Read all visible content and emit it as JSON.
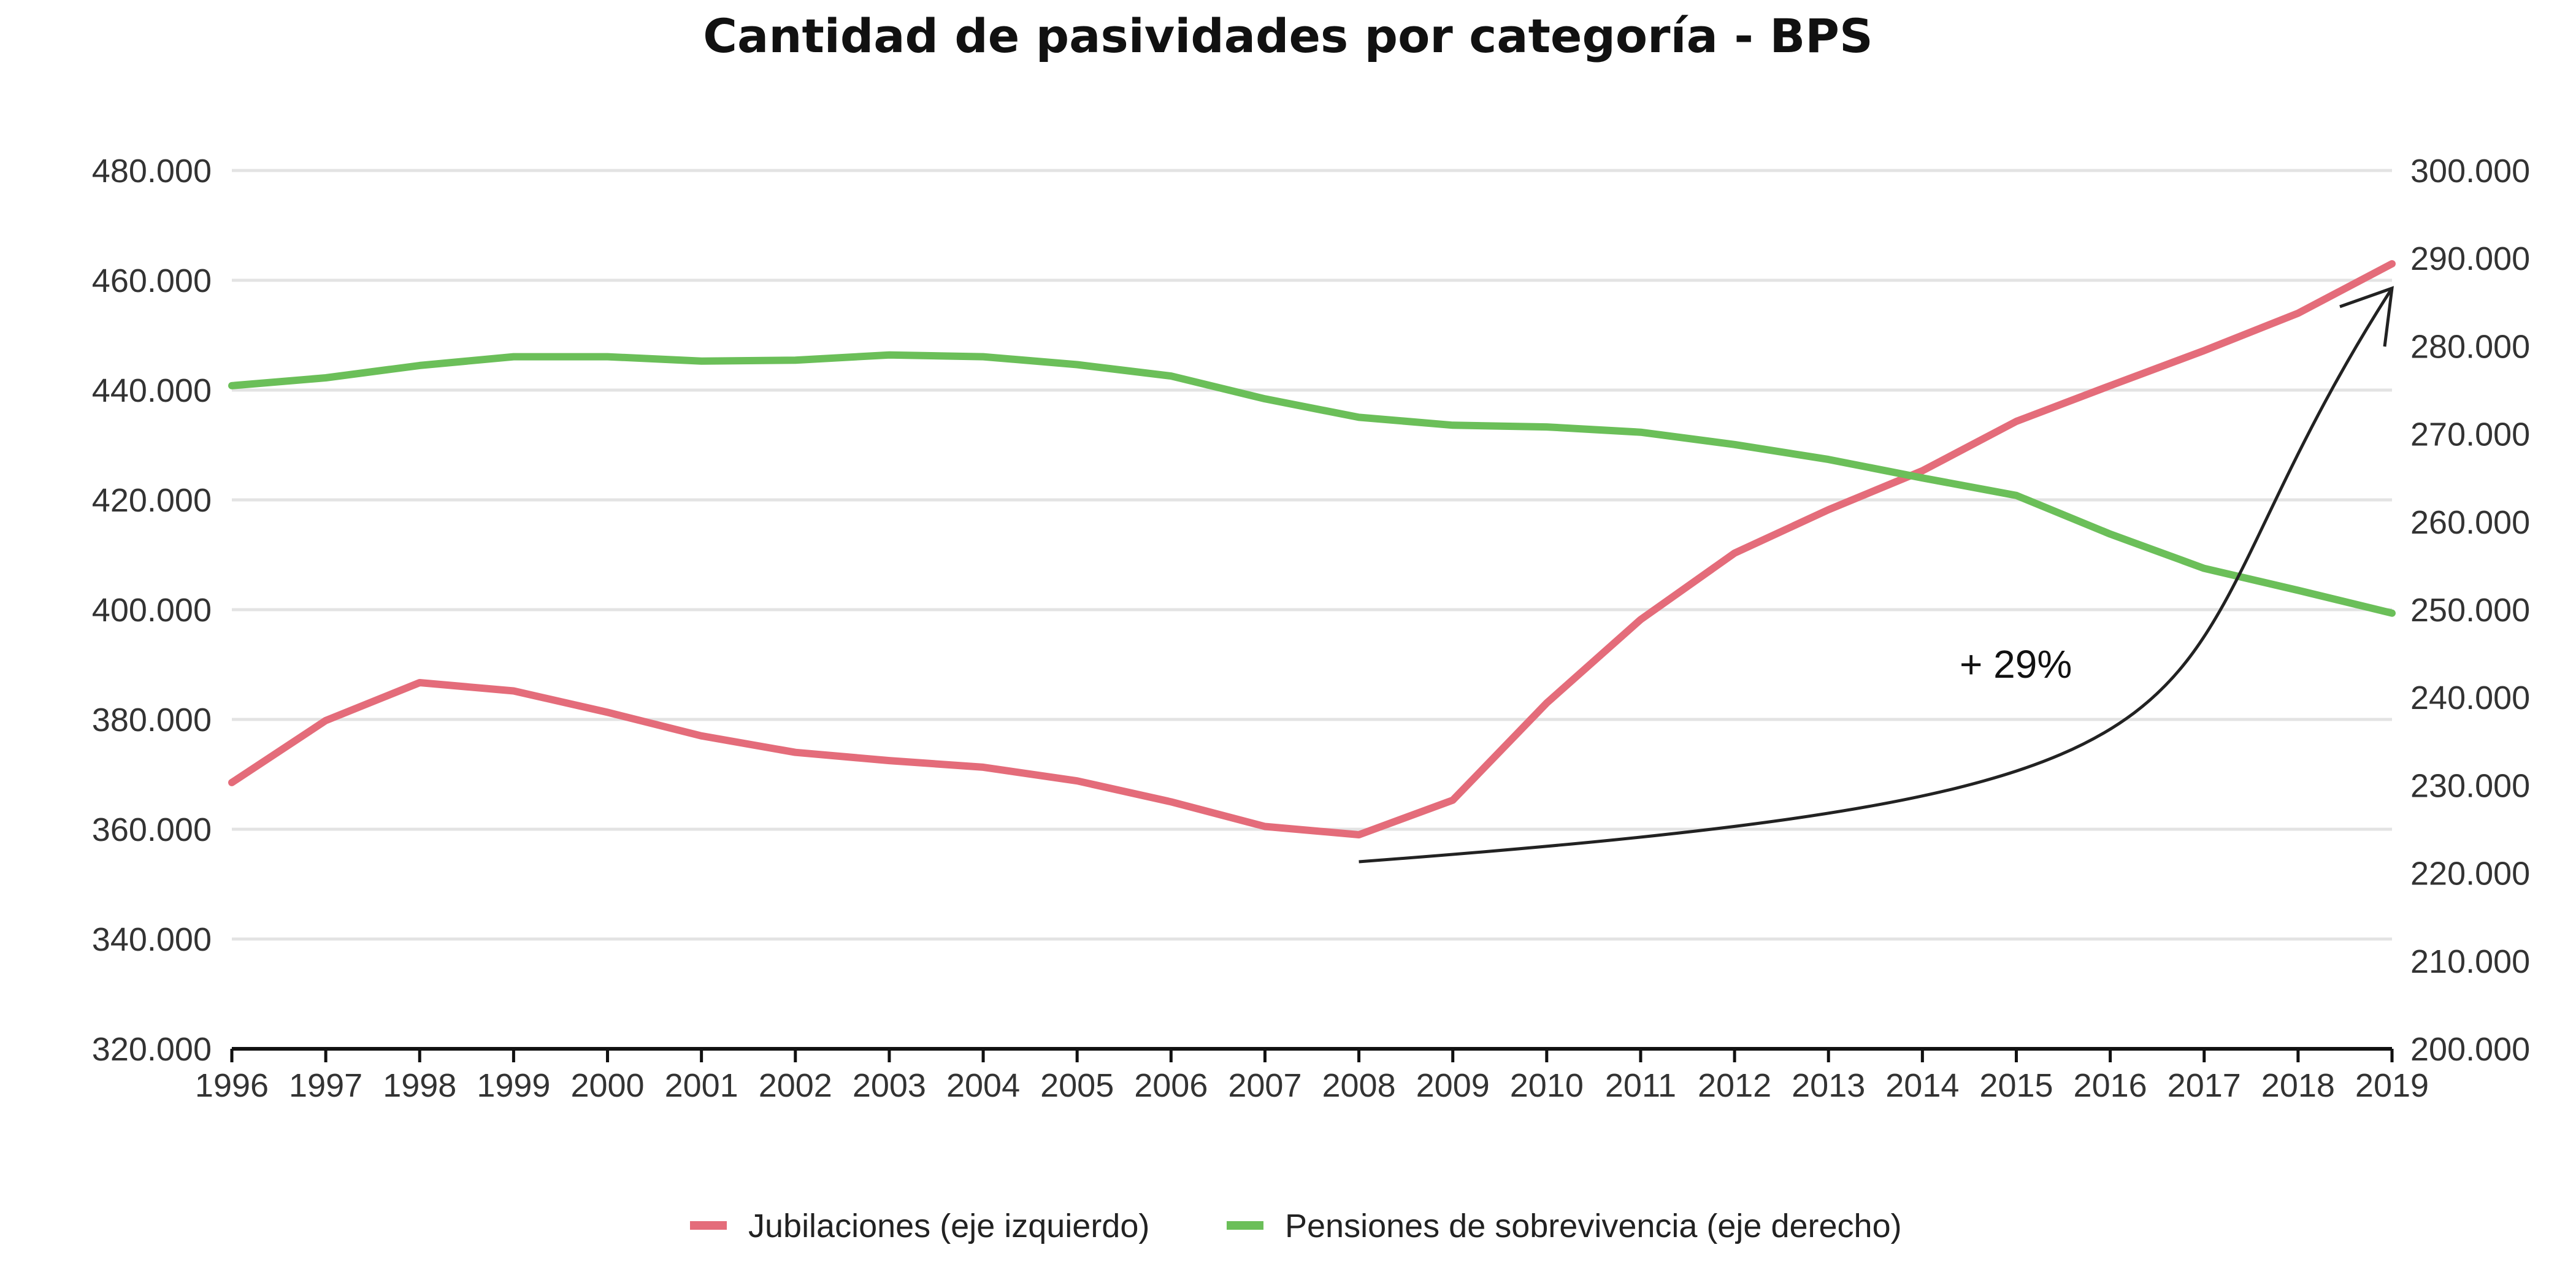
{
  "colors": {
    "jubilaciones": "#E46C7A",
    "pensiones": "#6BBF59",
    "grid": "#E3E3E3",
    "axis": "#111111",
    "annotation": "#222222"
  },
  "chart_data": {
    "type": "line",
    "title": "Cantidad de pasividades por categoría - BPS",
    "x": [
      "1996",
      "1997",
      "1998",
      "1999",
      "2000",
      "2001",
      "2002",
      "2003",
      "2004",
      "2005",
      "2006",
      "2007",
      "2008",
      "2009",
      "2010",
      "2011",
      "2012",
      "2013",
      "2014",
      "2015",
      "2016",
      "2017",
      "2018",
      "2019"
    ],
    "series": [
      {
        "name": "Jubilaciones (eje izquierdo)",
        "axis": "left",
        "color": "#E46C7A",
        "values": [
          368500,
          379800,
          386700,
          385200,
          381300,
          377000,
          374000,
          372500,
          371300,
          368800,
          365000,
          360500,
          359000,
          365300,
          383000,
          398200,
          410300,
          418200,
          425300,
          434300,
          440800,
          447200,
          454000,
          463000
        ]
      },
      {
        "name": "Pensiones de sobrevivencia (eje derecho)",
        "axis": "right",
        "color": "#6BBF59",
        "values": [
          275500,
          276400,
          277800,
          278800,
          278800,
          278300,
          278400,
          279000,
          278800,
          277900,
          276600,
          274000,
          271900,
          271000,
          270800,
          270200,
          268800,
          267100,
          265000,
          263000,
          258600,
          254700,
          252200,
          249600
        ]
      }
    ],
    "left_axis": {
      "ylim": [
        320000,
        480000
      ],
      "ticks": [
        "320.000",
        "340.000",
        "360.000",
        "380.000",
        "400.000",
        "420.000",
        "440.000",
        "460.000",
        "480.000"
      ]
    },
    "right_axis": {
      "ylim": [
        200000,
        300000
      ],
      "ticks": [
        "200.000",
        "210.000",
        "220.000",
        "230.000",
        "240.000",
        "250.000",
        "260.000",
        "270.000",
        "280.000",
        "290.000",
        "300.000"
      ]
    },
    "grid": true,
    "legend": "bottom-center",
    "annotation": {
      "text": "+ 29%",
      "from_x": "2008",
      "to_x": "2019"
    }
  }
}
